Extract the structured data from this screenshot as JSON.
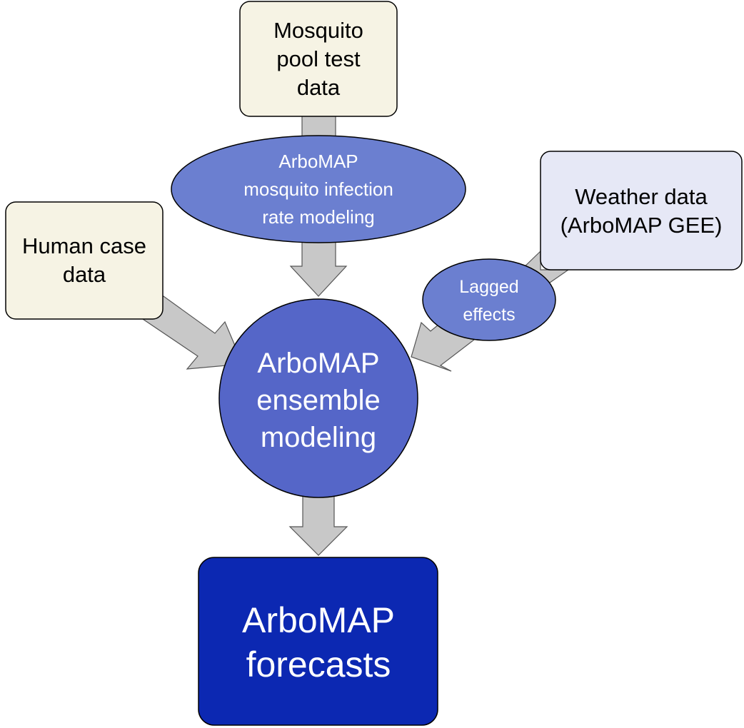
{
  "nodes": {
    "mosquito_pool": {
      "label": "Mosquito pool test data",
      "lines": [
        "Mosquito",
        "pool test",
        "data"
      ],
      "fill": "#f6f3e4"
    },
    "human_case": {
      "label": "Human case data",
      "lines": [
        "Human case",
        "data"
      ],
      "fill": "#f6f3e4"
    },
    "weather": {
      "label": "Weather data (ArboMAP GEE)",
      "lines": [
        "Weather data",
        "(ArboMAP GEE)"
      ],
      "fill": "#e6e8f6"
    },
    "infection_rate": {
      "label": "ArboMAP mosquito infection rate modeling",
      "lines": [
        "ArboMAP",
        "mosquito infection",
        "rate modeling"
      ],
      "fill": "#6b7fd0"
    },
    "lagged": {
      "label": "Lagged effects",
      "lines": [
        "Lagged",
        "effects"
      ],
      "fill": "#6b7fd0"
    },
    "ensemble": {
      "label": "ArboMAP ensemble modeling",
      "lines": [
        "ArboMAP",
        "ensemble",
        "modeling"
      ],
      "fill": "#5566c8"
    },
    "forecasts": {
      "label": "ArboMAP forecasts",
      "lines": [
        "ArboMAP",
        "forecasts"
      ],
      "fill": "#0c28b2"
    }
  },
  "edges": [
    {
      "from": "mosquito_pool",
      "to": "infection_rate"
    },
    {
      "from": "infection_rate",
      "to": "ensemble"
    },
    {
      "from": "human_case",
      "to": "ensemble"
    },
    {
      "from": "weather",
      "to": "lagged"
    },
    {
      "from": "lagged",
      "to": "ensemble"
    },
    {
      "from": "ensemble",
      "to": "forecasts"
    }
  ],
  "colors": {
    "arrow_fill": "#c8c8c8",
    "arrow_stroke": "#555555",
    "node_stroke": "#000000"
  }
}
